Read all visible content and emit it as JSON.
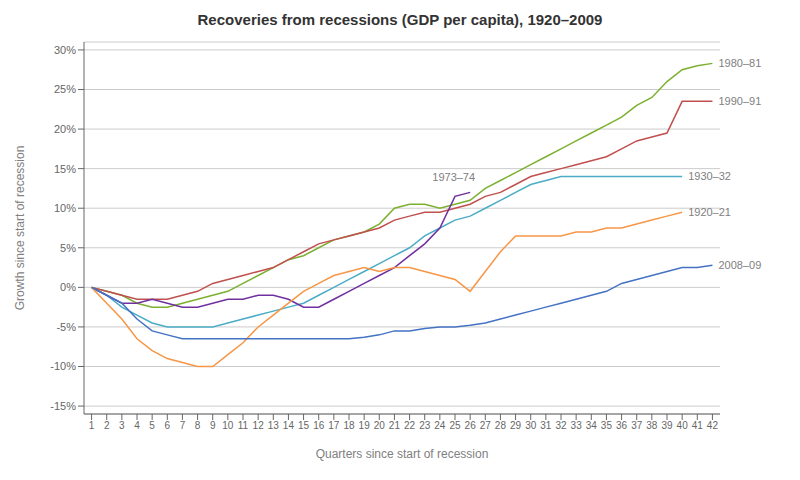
{
  "chart_data": {
    "type": "line",
    "title": "Recoveries from recessions (GDP per capita), 1920–2009",
    "xlabel": "Quarters since start of recession",
    "ylabel": "Growth since start of recession",
    "x": [
      1,
      2,
      3,
      4,
      5,
      6,
      7,
      8,
      9,
      10,
      11,
      12,
      13,
      14,
      15,
      16,
      17,
      18,
      19,
      20,
      21,
      22,
      23,
      24,
      25,
      26,
      27,
      28,
      29,
      30,
      31,
      32,
      33,
      34,
      35,
      36,
      37,
      38,
      39,
      40,
      41,
      42
    ],
    "xlim": [
      0.5,
      42.5
    ],
    "xticks": [
      1,
      2,
      3,
      4,
      5,
      6,
      7,
      8,
      9,
      10,
      11,
      12,
      13,
      14,
      15,
      16,
      17,
      18,
      19,
      20,
      21,
      22,
      23,
      24,
      25,
      26,
      27,
      28,
      29,
      30,
      31,
      32,
      33,
      34,
      35,
      36,
      37,
      38,
      39,
      40,
      41,
      42
    ],
    "ylim": [
      -0.16,
      0.31
    ],
    "yticks": [
      {
        "value": -0.15,
        "label": "-15%"
      },
      {
        "value": -0.1,
        "label": "-10%"
      },
      {
        "value": -0.05,
        "label": "-5%"
      },
      {
        "value": 0.0,
        "label": "0%"
      },
      {
        "value": 0.05,
        "label": "5%"
      },
      {
        "value": 0.1,
        "label": "10%"
      },
      {
        "value": 0.15,
        "label": "15%"
      },
      {
        "value": 0.2,
        "label": "20%"
      },
      {
        "value": 0.25,
        "label": "25%"
      },
      {
        "value": 0.3,
        "label": "30%"
      }
    ],
    "grid": true,
    "series": [
      {
        "name": "1980–81",
        "color": "#7cb030",
        "values": [
          0.0,
          -0.005,
          -0.01,
          -0.02,
          -0.025,
          -0.025,
          -0.02,
          -0.015,
          -0.01,
          -0.005,
          0.005,
          0.015,
          0.025,
          0.035,
          0.04,
          0.05,
          0.06,
          0.065,
          0.07,
          0.08,
          0.1,
          0.105,
          0.105,
          0.1,
          0.105,
          0.11,
          0.125,
          0.135,
          0.145,
          0.155,
          0.165,
          0.175,
          0.185,
          0.195,
          0.205,
          0.215,
          0.23,
          0.24,
          0.26,
          0.275,
          0.28,
          0.283
        ]
      },
      {
        "name": "1990–91",
        "color": "#c0504d",
        "values": [
          0.0,
          -0.005,
          -0.01,
          -0.015,
          -0.015,
          -0.015,
          -0.01,
          -0.005,
          0.005,
          0.01,
          0.015,
          0.02,
          0.025,
          0.035,
          0.045,
          0.055,
          0.06,
          0.065,
          0.07,
          0.075,
          0.085,
          0.09,
          0.095,
          0.095,
          0.1,
          0.105,
          0.115,
          0.12,
          0.13,
          0.14,
          0.145,
          0.15,
          0.155,
          0.16,
          0.165,
          0.175,
          0.185,
          0.19,
          0.195,
          0.235,
          0.235,
          0.235
        ]
      },
      {
        "name": "1930–32",
        "color": "#4bacc6",
        "values": [
          0.0,
          -0.01,
          -0.025,
          -0.035,
          -0.045,
          -0.05,
          -0.05,
          -0.05,
          -0.05,
          -0.045,
          -0.04,
          -0.035,
          -0.03,
          -0.025,
          -0.02,
          -0.01,
          0.0,
          0.01,
          0.02,
          0.03,
          0.04,
          0.05,
          0.065,
          0.075,
          0.085,
          0.09,
          0.1,
          0.11,
          0.12,
          0.13,
          0.135,
          0.14,
          0.14,
          0.14,
          0.14,
          0.14,
          0.14,
          0.14,
          0.14,
          0.14,
          null,
          null
        ]
      },
      {
        "name": "1973–74",
        "color": "#7030a0",
        "values": [
          0.0,
          -0.01,
          -0.02,
          -0.02,
          -0.015,
          -0.02,
          -0.025,
          -0.025,
          -0.02,
          -0.015,
          -0.015,
          -0.01,
          -0.01,
          -0.015,
          -0.025,
          -0.025,
          -0.015,
          -0.005,
          0.005,
          0.015,
          0.025,
          0.04,
          0.055,
          0.075,
          0.115,
          0.12,
          null,
          null,
          null,
          null,
          null,
          null,
          null,
          null,
          null,
          null,
          null,
          null,
          null,
          null,
          null,
          null
        ]
      },
      {
        "name": "1920–21",
        "color": "#f79646",
        "values": [
          0.0,
          -0.02,
          -0.04,
          -0.065,
          -0.08,
          -0.09,
          -0.095,
          -0.1,
          -0.1,
          -0.085,
          -0.07,
          -0.05,
          -0.035,
          -0.02,
          -0.005,
          0.005,
          0.015,
          0.02,
          0.025,
          0.02,
          0.025,
          0.025,
          0.02,
          0.015,
          0.01,
          -0.005,
          0.02,
          0.045,
          0.065,
          0.065,
          0.065,
          0.065,
          0.07,
          0.07,
          0.075,
          0.075,
          0.08,
          0.085,
          0.09,
          0.095,
          null,
          null
        ]
      },
      {
        "name": "2008–09",
        "color": "#4472c4",
        "values": [
          0.0,
          -0.01,
          -0.02,
          -0.04,
          -0.055,
          -0.06,
          -0.065,
          -0.065,
          -0.065,
          -0.065,
          -0.065,
          -0.065,
          -0.065,
          -0.065,
          -0.065,
          -0.065,
          -0.065,
          -0.065,
          -0.063,
          -0.06,
          -0.055,
          -0.055,
          -0.052,
          -0.05,
          -0.05,
          -0.048,
          -0.045,
          -0.04,
          -0.035,
          -0.03,
          -0.025,
          -0.02,
          -0.015,
          -0.01,
          -0.005,
          0.005,
          0.01,
          0.015,
          0.02,
          0.025,
          0.025,
          0.028
        ]
      }
    ],
    "annotations": [
      {
        "text": "1973–74",
        "x": 23.5,
        "y": 0.135
      },
      {
        "text": "1980–81",
        "series": "1980–81"
      },
      {
        "text": "1990–91",
        "series": "1990–91"
      },
      {
        "text": "1930–32",
        "series": "1930–32"
      },
      {
        "text": "1920–21",
        "series": "1920–21"
      },
      {
        "text": "2008–09",
        "series": "2008–09"
      }
    ]
  }
}
